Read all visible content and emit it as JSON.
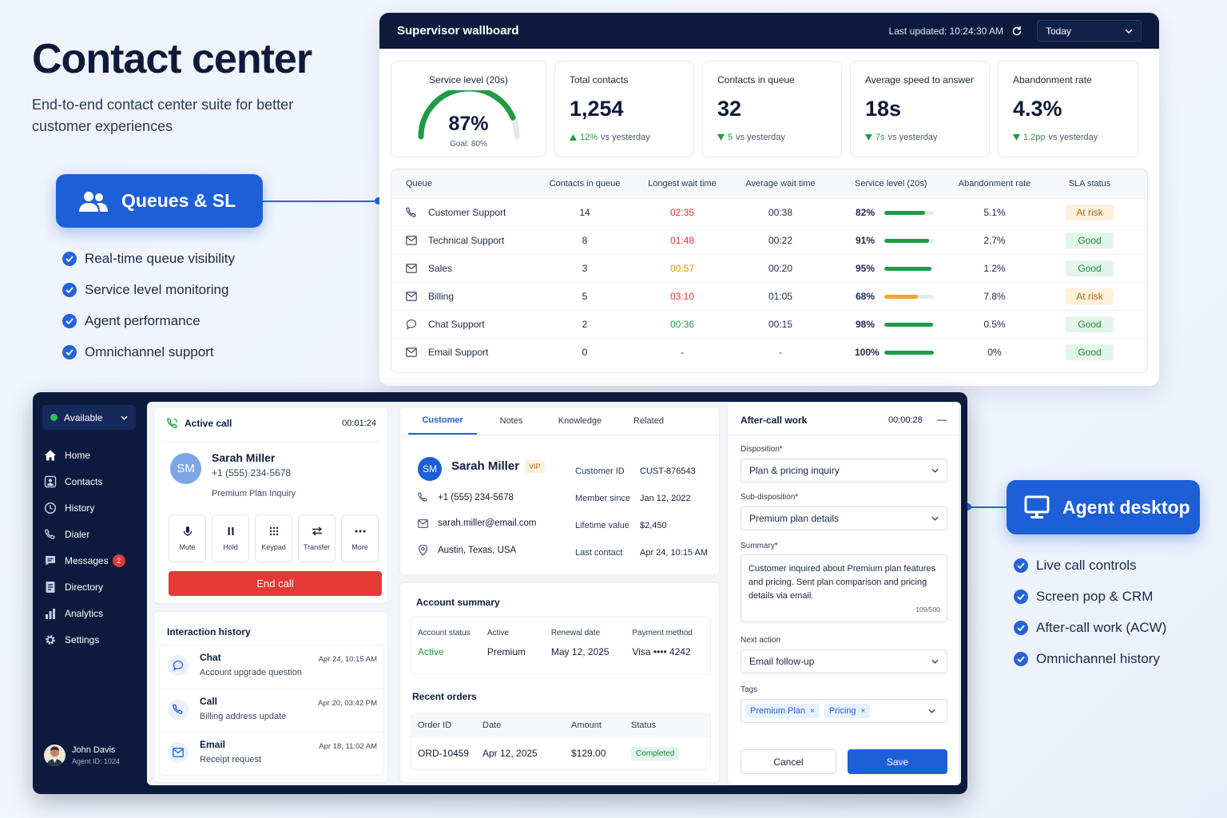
{
  "hero": {
    "title": "Contact center",
    "subtitle": "End-to-end contact center suite for better customer experiences"
  },
  "queues_callout": {
    "label": "Queues & SL",
    "features": [
      "Real-time queue visibility",
      "Service level monitoring",
      "Agent performance",
      "Omnichannel support"
    ]
  },
  "agent_callout": {
    "label": "Agent desktop",
    "features": [
      "Live call controls",
      "Screen pop & CRM",
      "After-call work (ACW)",
      "Omnichannel history"
    ]
  },
  "wallboard": {
    "title": "Supervisor wallboard",
    "last_updated": "Last updated: 10:24:30 AM",
    "range": "Today",
    "service_level": {
      "label": "Service level (20s)",
      "value": "87%",
      "fraction": 0.87,
      "goal": "Goal: 80%"
    },
    "kpis": [
      {
        "label": "Total contacts",
        "value": "1,254",
        "delta": "12%",
        "delta_text": "vs yesterday",
        "direction": "up"
      },
      {
        "label": "Contacts in queue",
        "value": "32",
        "delta": "5",
        "delta_text": "vs yesterday",
        "direction": "down"
      },
      {
        "label": "Average speed to answer",
        "value": "18s",
        "delta": "7s",
        "delta_text": "vs yesterday",
        "direction": "down"
      },
      {
        "label": "Abandonment rate",
        "value": "4.3%",
        "delta": "1.2pp",
        "delta_text": "vs yesterday",
        "direction": "down"
      }
    ],
    "table": {
      "headers": [
        "Queue",
        "Contacts in queue",
        "Longest wait time",
        "Average wait time",
        "Service level (20s)",
        "Abandonment rate",
        "SLA status"
      ],
      "rows": [
        {
          "icon": "phone-icon",
          "queue": "Customer Support",
          "contacts": "14",
          "longest": "02:35",
          "longest_color": "#e03131",
          "avg": "00:38",
          "sl": "82%",
          "sl_fraction": 0.82,
          "bar_color": "#1f9a46",
          "abandon": "5.1%",
          "status": "At risk",
          "status_bg": "#fdf1dc",
          "status_color": "#b5671a"
        },
        {
          "icon": "mail-icon",
          "queue": "Technical Support",
          "contacts": "8",
          "longest": "01:48",
          "longest_color": "#e03131",
          "avg": "00:22",
          "sl": "91%",
          "sl_fraction": 0.91,
          "bar_color": "#1f9a46",
          "abandon": "2.7%",
          "status": "Good",
          "status_bg": "#e3f5e8",
          "status_color": "#1e8a40"
        },
        {
          "icon": "mail-icon",
          "queue": "Sales",
          "contacts": "3",
          "longest": "00:57",
          "longest_color": "#e8900c",
          "avg": "00:20",
          "sl": "95%",
          "sl_fraction": 0.95,
          "bar_color": "#1f9a46",
          "abandon": "1.2%",
          "status": "Good",
          "status_bg": "#e3f5e8",
          "status_color": "#1e8a40"
        },
        {
          "icon": "mail-icon",
          "queue": "Billing",
          "contacts": "5",
          "longest": "03:10",
          "longest_color": "#e03131",
          "avg": "01:05",
          "sl": "68%",
          "sl_fraction": 0.68,
          "bar_color": "#f5a623",
          "abandon": "7.8%",
          "status": "At risk",
          "status_bg": "#fdf1dc",
          "status_color": "#b5671a"
        },
        {
          "icon": "chat-icon",
          "queue": "Chat Support",
          "contacts": "2",
          "longest": "00:36",
          "longest_color": "#1f9a46",
          "avg": "00:15",
          "sl": "98%",
          "sl_fraction": 0.98,
          "bar_color": "#1f9a46",
          "abandon": "0.5%",
          "status": "Good",
          "status_bg": "#e3f5e8",
          "status_color": "#1e8a40"
        },
        {
          "icon": "mail-icon",
          "queue": "Email Support",
          "contacts": "0",
          "longest": "-",
          "longest_color": "#1d2947",
          "avg": "-",
          "sl": "100%",
          "sl_fraction": 1.0,
          "bar_color": "#1f9a46",
          "abandon": "0%",
          "status": "Good",
          "status_bg": "#e3f5e8",
          "status_color": "#1e8a40"
        }
      ]
    }
  },
  "desktop": {
    "status": "Available",
    "nav": [
      {
        "label": "Home",
        "icon": "home-icon"
      },
      {
        "label": "Contacts",
        "icon": "contacts-icon"
      },
      {
        "label": "History",
        "icon": "history-icon"
      },
      {
        "label": "Dialer",
        "icon": "phone-icon"
      },
      {
        "label": "Messages",
        "icon": "messages-icon",
        "badge": "2"
      },
      {
        "label": "Directory",
        "icon": "directory-icon"
      },
      {
        "label": "Analytics",
        "icon": "analytics-icon"
      },
      {
        "label": "Settings",
        "icon": "gear-icon"
      }
    ],
    "agent": {
      "name": "John Davis",
      "id": "Agent ID: 1024"
    },
    "call": {
      "title": "Active call",
      "timer": "00:01:24",
      "initials": "SM",
      "name": "Sarah Miller",
      "phone": "+1 (555) 234-5678",
      "topic": "Premium Plan Inquiry",
      "controls": [
        "Mute",
        "Hold",
        "Keypad",
        "Transfer",
        "More"
      ],
      "end_label": "End call"
    },
    "history": {
      "title": "Interaction history",
      "items": [
        {
          "type": "Chat",
          "desc": "Account upgrade question",
          "time": "Apr 24, 10:15 AM"
        },
        {
          "type": "Call",
          "desc": "Billing address update",
          "time": "Apr 20, 03:42 PM"
        },
        {
          "type": "Email",
          "desc": "Receipt request",
          "time": "Apr 18, 11:02 AM"
        }
      ]
    },
    "crm": {
      "tabs": [
        "Customer",
        "Notes",
        "Knowledge",
        "Related"
      ],
      "initials": "SM",
      "name": "Sarah Miller",
      "vip": "VIP",
      "phone": "+1 (555) 234-5678",
      "email": "sarah.miller@email.com",
      "location": "Austin, Texas, USA",
      "fields": [
        {
          "label": "Customer ID",
          "value": "CUST-876543"
        },
        {
          "label": "Member since",
          "value": "Jan 12, 2022"
        },
        {
          "label": "Lifetime value",
          "value": "$2,450"
        },
        {
          "label": "Last contact",
          "value": "Apr 24, 10:15 AM"
        }
      ],
      "account": {
        "title": "Account summary",
        "cols": [
          {
            "label": "Account status",
            "value": "Active"
          },
          {
            "label": "Active",
            "value": "Premium"
          },
          {
            "label": "Renewal date",
            "value": "May 12, 2025"
          },
          {
            "label": "Payment method",
            "value": "Visa •••• 4242"
          }
        ]
      },
      "orders": {
        "title": "Recent orders",
        "headers": [
          "Order ID",
          "Date",
          "Amount",
          "Status"
        ],
        "row": {
          "id": "ORD-10459",
          "date": "Apr 12, 2025",
          "amount": "$129.00",
          "status": "Completed"
        }
      }
    },
    "acw": {
      "title": "After-call work",
      "timer": "00:00:28",
      "disposition_label": "Disposition*",
      "disposition": "Plan & pricing inquiry",
      "sub_label": "Sub-disposition*",
      "sub": "Premium plan details",
      "summary_label": "Summary*",
      "summary": "Customer inquired about Premium plan features and pricing. Sent plan comparison and pricing details via email.",
      "count": "109/500",
      "next_label": "Next action",
      "next": "Email follow-up",
      "tags_label": "Tags",
      "tags": [
        "Premium Plan",
        "Pricing"
      ],
      "cancel": "Cancel",
      "save": "Save"
    }
  }
}
